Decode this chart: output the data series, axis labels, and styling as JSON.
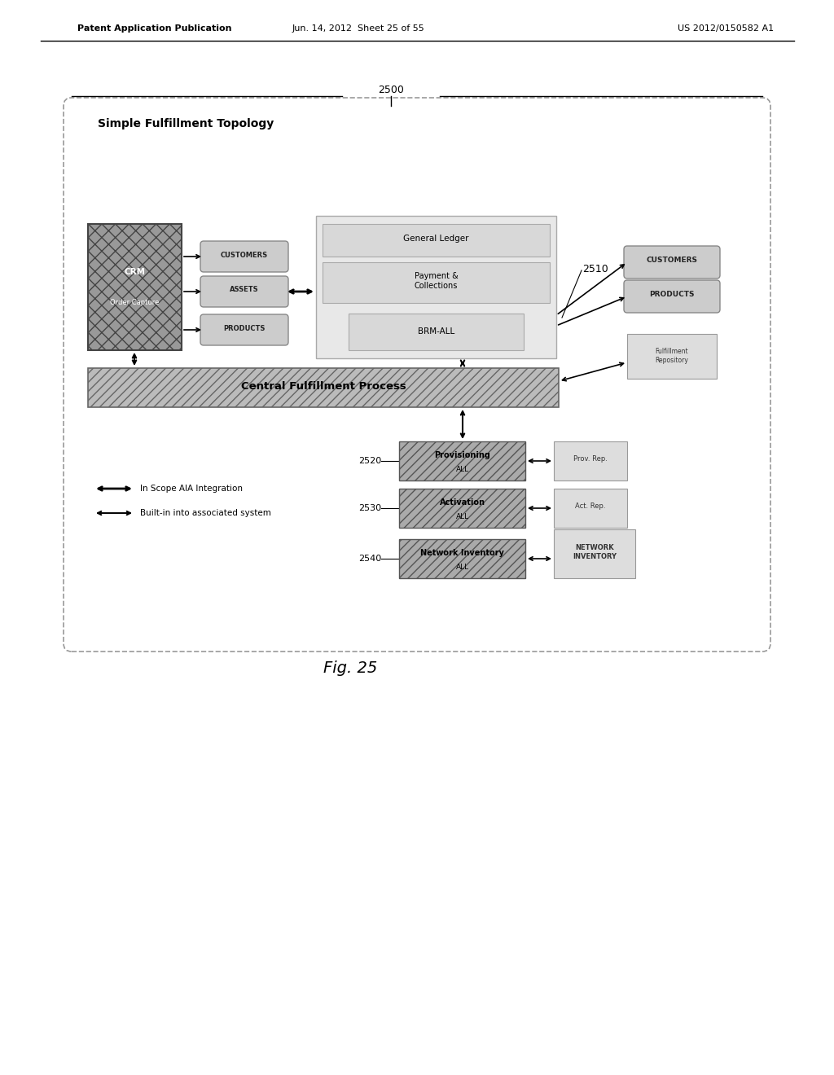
{
  "title_header_left": "Patent Application Publication",
  "title_header_mid": "Jun. 14, 2012  Sheet 25 of 55",
  "title_header_right": "US 2012/0150582 A1",
  "fig_label": "Fig. 25",
  "diagram_label": "2500",
  "diagram_title": "Simple Fulfillment Topology",
  "bg_color": "#ffffff",
  "crm_fill": "#999999",
  "pill_fill": "#cccccc",
  "pill_edge": "#888888",
  "bigbox_fill": "#e8e8e8",
  "bigbox_edge": "#aaaaaa",
  "subbox_fill": "#d8d8d8",
  "cfp_fill": "#bbbbbb",
  "cfp_edge": "#666666",
  "prov_fill": "#aaaaaa",
  "right_pill_fill": "#cccccc",
  "repo_fill": "#dddddd",
  "repo_edge": "#999999",
  "label_2510": "2510",
  "label_2520": "2520",
  "label_2530": "2530",
  "label_2540": "2540",
  "legend_1": "In Scope AIA Integration",
  "legend_2": "Built-in into associated system"
}
